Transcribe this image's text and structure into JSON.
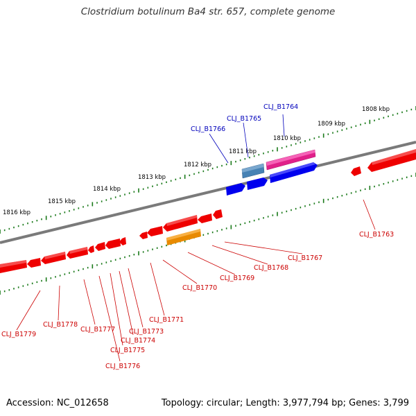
{
  "title": "Clostridium botulinum Ba4 str. 657, complete genome",
  "accession": "Accession: NC_012658",
  "topology": "Topology: circular; Length: 3,977,794 bp; Genes: 3,799",
  "colors": {
    "backbone": "#888888",
    "tick": "#1a7a1a",
    "red": "#ee0000",
    "label_red": "#cc0000",
    "label_blue": "#0000bb"
  },
  "kbp_labels": [
    "1808 kbp",
    "1809 kbp",
    "1810 kbp",
    "1811 kbp",
    "1812 kbp",
    "1813 kbp",
    "1814 kbp",
    "1815 kbp",
    "1816 kbp"
  ],
  "genes_forward_labels": [
    "CLJ_B1764",
    "CLJ_B1765",
    "CLJ_B1766"
  ],
  "genes_reverse_labels": [
    "CLJ_B1763",
    "CLJ_B1767",
    "CLJ_B1768",
    "CLJ_B1769",
    "CLJ_B1770",
    "CLJ_B1771",
    "CLJ_B1773",
    "CLJ_B1774",
    "CLJ_B1775",
    "CLJ_B1776",
    "CLJ_B1777",
    "CLJ_B1778",
    "CLJ_B1779"
  ]
}
